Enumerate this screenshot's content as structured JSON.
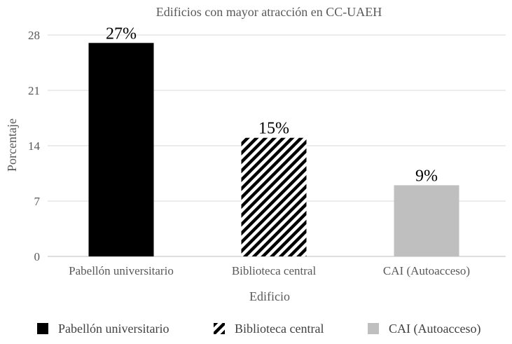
{
  "chart_data": {
    "type": "bar",
    "title": "Edificios con mayor atracción en CC-UAEH",
    "xlabel": "Edificio",
    "ylabel": "Porcentaje",
    "categories": [
      "Pabellón universitario",
      "Biblioteca central",
      "CAI (Autoacceso)"
    ],
    "values": [
      27,
      15,
      9
    ],
    "data_labels": [
      "27%",
      "15%",
      "9%"
    ],
    "ylim": [
      0,
      28
    ],
    "yticks": [
      "0",
      "7",
      "14",
      "21",
      "28"
    ],
    "grid": true,
    "legend_position": "bottom",
    "series_styles": [
      {
        "fill": "#000000",
        "pattern": "solid"
      },
      {
        "fill": "#000000",
        "pattern": "diagonal-stripes"
      },
      {
        "fill": "#bfbfbf",
        "pattern": "solid"
      }
    ]
  }
}
